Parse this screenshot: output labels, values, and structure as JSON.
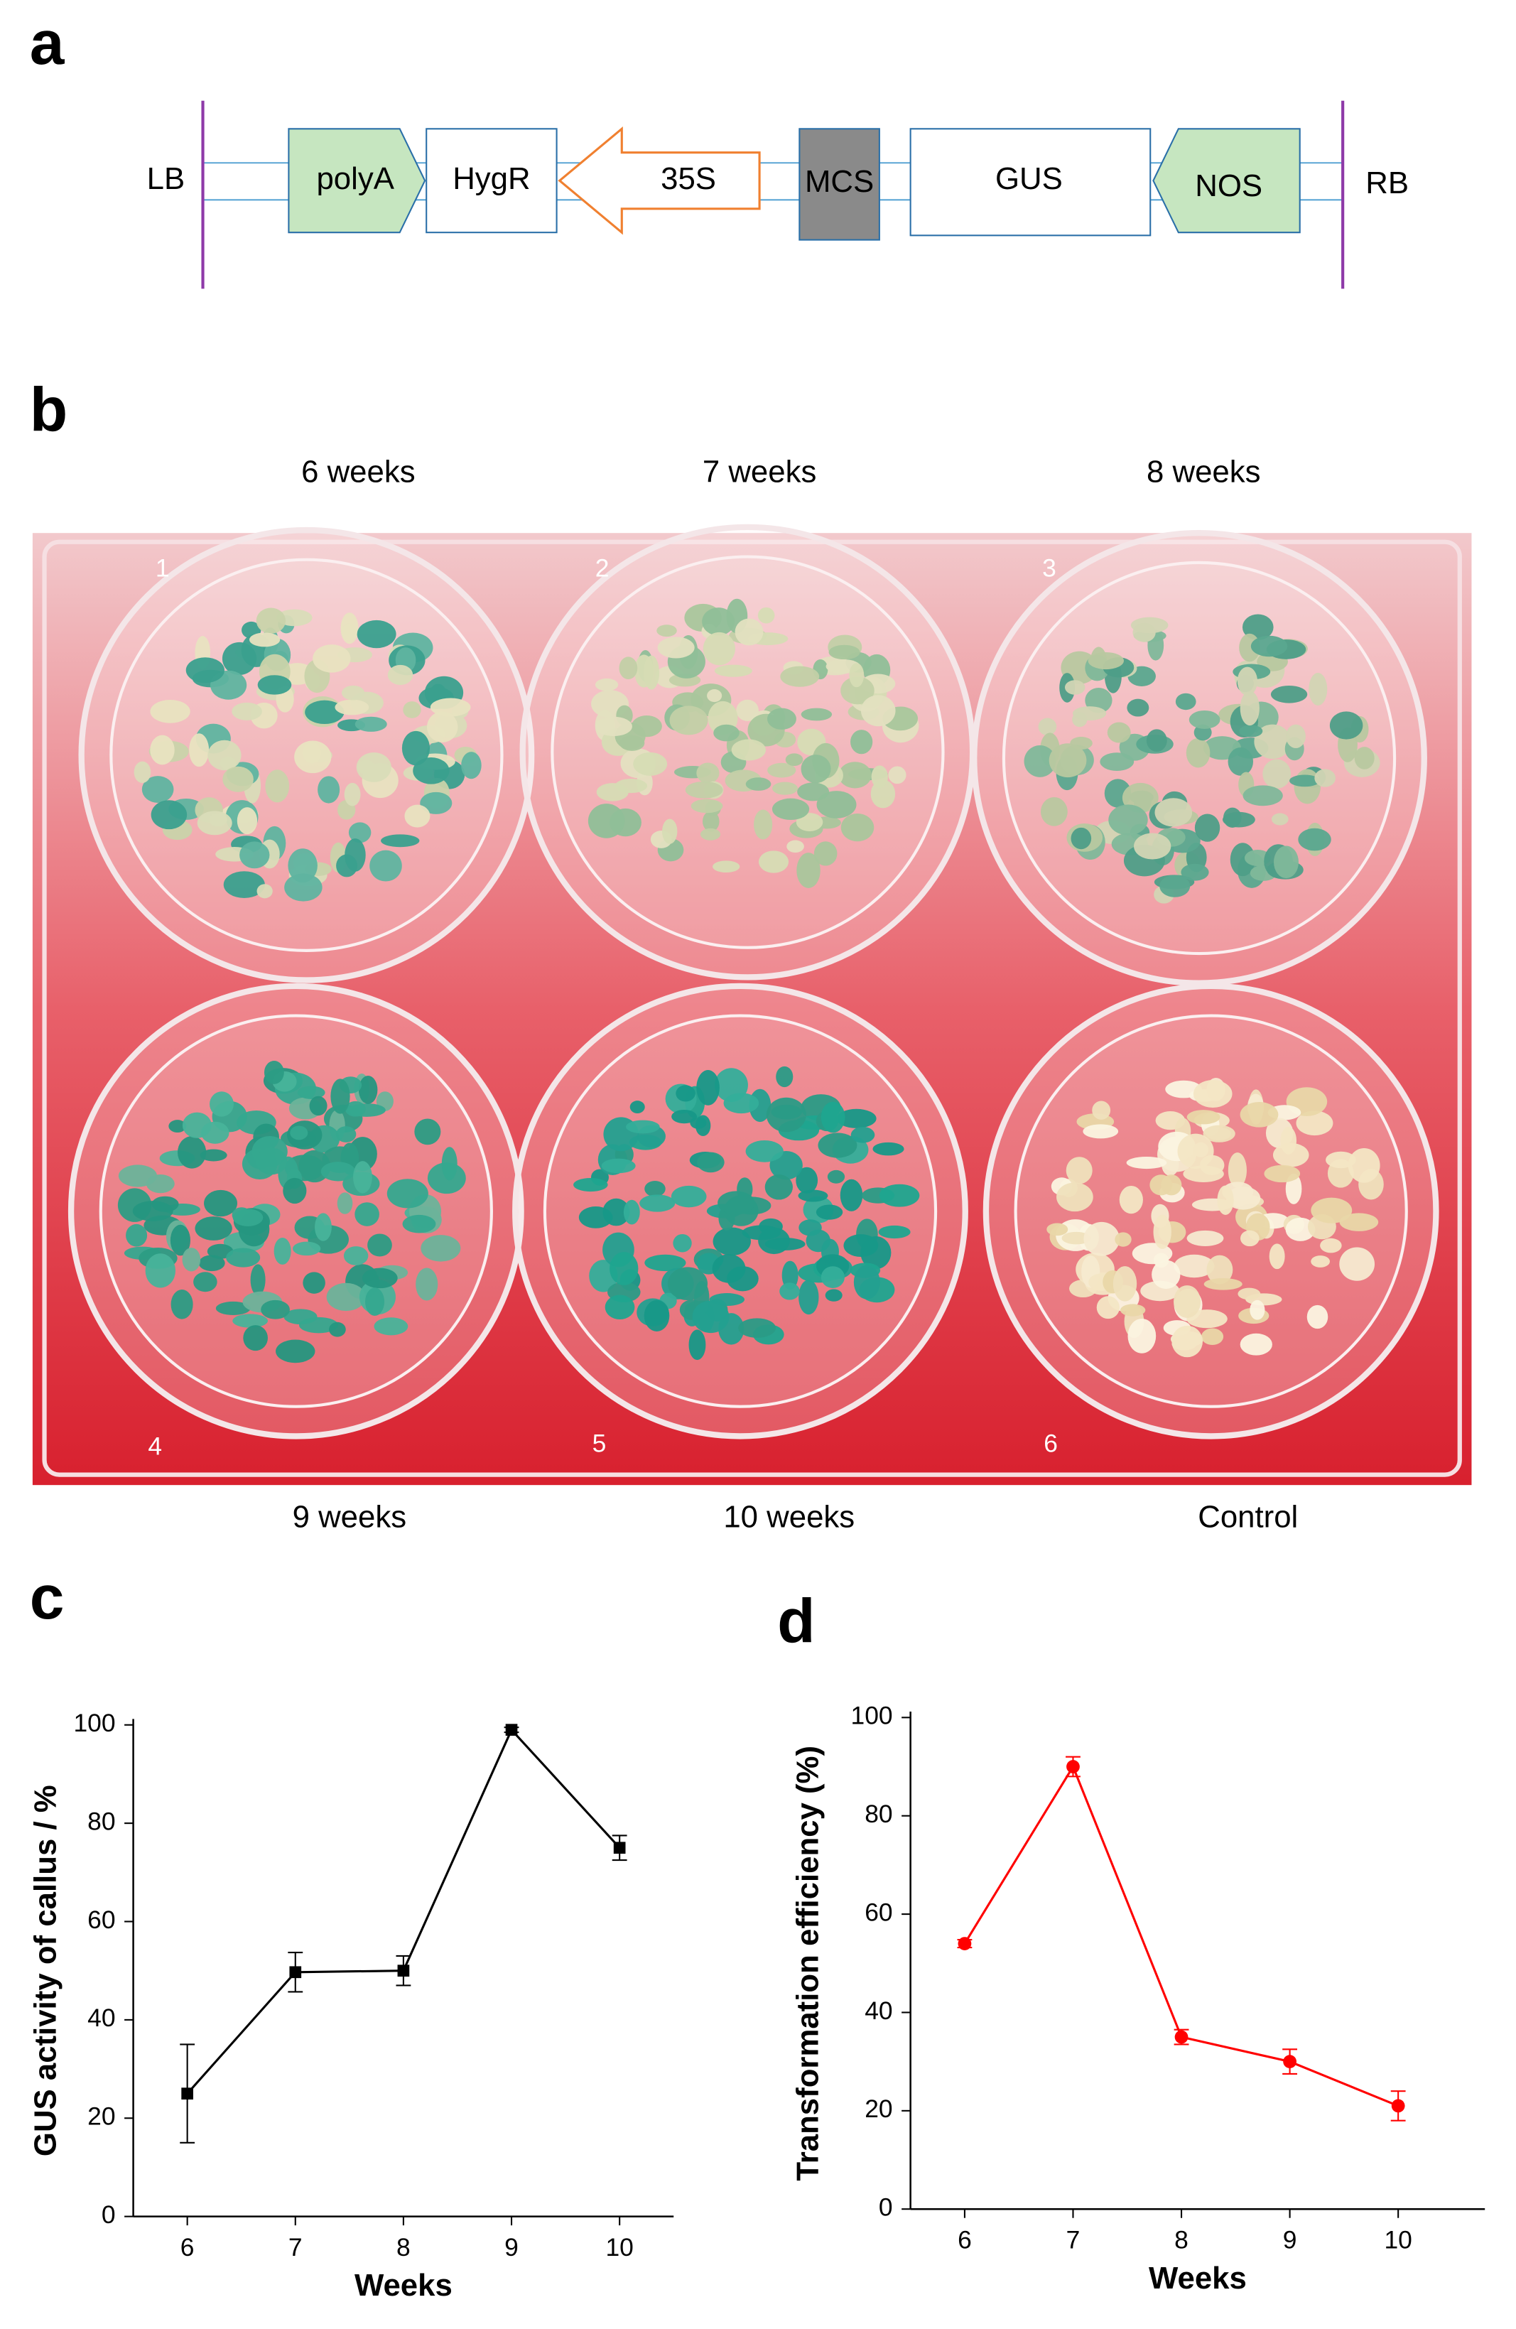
{
  "panel_labels": [
    "a",
    "b",
    "c",
    "d"
  ],
  "construct": {
    "left_border": "LB",
    "right_border": "RB",
    "elements": [
      "polyA",
      "HygR",
      "35S",
      "MCS",
      "GUS",
      "NOS"
    ]
  },
  "photo": {
    "top_labels": [
      "6 weeks",
      "7 weeks",
      "8 weeks"
    ],
    "bottom_labels": [
      "9 weeks",
      "10 weeks",
      "Control"
    ],
    "well_numbers": [
      "1",
      "2",
      "3",
      "4",
      "5",
      "6"
    ]
  },
  "chart_data": [
    {
      "type": "line",
      "x_label": "Weeks",
      "y_label": "GUS activity of callus / %",
      "x": [
        6,
        7,
        8,
        9,
        10
      ],
      "values": [
        25,
        49.7,
        50,
        99,
        75
      ],
      "errors": [
        10,
        4,
        3,
        0.5,
        2.5
      ],
      "color": "#000000",
      "marker": "square",
      "xlim": [
        5.5,
        10.5
      ],
      "xticks": [
        6,
        7,
        8,
        9,
        10
      ],
      "ylim": [
        0,
        100
      ],
      "yticks": [
        0,
        20,
        40,
        60,
        80,
        100
      ]
    },
    {
      "type": "line",
      "x_label": "Weeks",
      "y_label": "Transformation efficiency (%)",
      "x": [
        6,
        7,
        8,
        9,
        10
      ],
      "values": [
        54,
        90,
        35,
        30,
        21
      ],
      "errors": [
        0.8,
        2,
        1.5,
        2.5,
        3
      ],
      "color": "#ff0000",
      "marker": "circle",
      "xlim": [
        5.5,
        10.8
      ],
      "xticks": [
        6,
        7,
        8,
        9,
        10
      ],
      "ylim": [
        0,
        100
      ],
      "yticks": [
        0,
        20,
        40,
        60,
        80,
        100
      ]
    }
  ]
}
